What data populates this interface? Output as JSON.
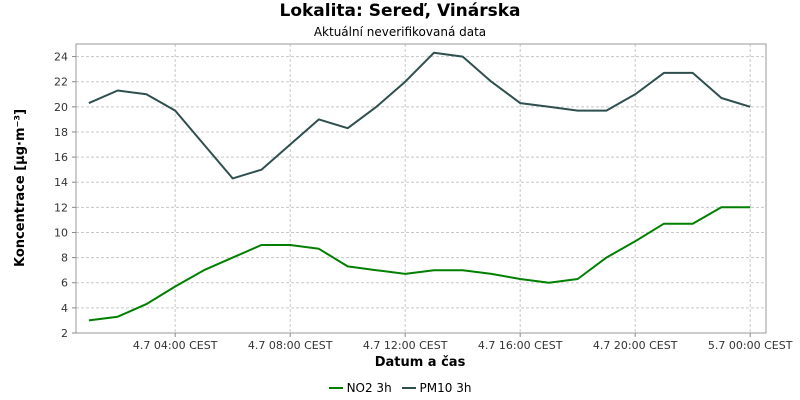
{
  "chart_data": {
    "type": "line",
    "title": "Lokalita: Sereď, Vinárska",
    "subtitle": "Aktuální neverifikovaná data",
    "xlabel": "Datum a čas",
    "ylabel": "Koncentrace [µg·m⁻³]",
    "ylim": [
      2,
      25
    ],
    "y_ticks": [
      2,
      4,
      6,
      8,
      10,
      12,
      14,
      16,
      18,
      20,
      22,
      24
    ],
    "xlim": [
      "4.7 01:00 CEST",
      "5.7 01:00 CEST"
    ],
    "x_ticks": [
      "4.7 04:00 CEST",
      "4.7 08:00 CEST",
      "4.7 12:00 CEST",
      "4.7 16:00 CEST",
      "4.7 20:00 CEST",
      "5.7 00:00 CEST"
    ],
    "x": [
      "4.7 01:00",
      "4.7 02:00",
      "4.7 03:00",
      "4.7 04:00",
      "4.7 05:00",
      "4.7 06:00",
      "4.7 07:00",
      "4.7 08:00",
      "4.7 09:00",
      "4.7 10:00",
      "4.7 11:00",
      "4.7 12:00",
      "4.7 13:00",
      "4.7 14:00",
      "4.7 15:00",
      "4.7 16:00",
      "4.7 17:00",
      "4.7 18:00",
      "4.7 19:00",
      "4.7 20:00",
      "4.7 21:00",
      "4.7 22:00",
      "4.7 23:00",
      "5.7 00:00"
    ],
    "grid": true,
    "legend_position": "bottom",
    "series": [
      {
        "name": "NO2 3h",
        "color": "#008000",
        "values": [
          3.0,
          3.3,
          4.3,
          5.7,
          7.0,
          8.0,
          9.0,
          9.0,
          8.7,
          7.3,
          7.0,
          6.7,
          7.0,
          7.0,
          6.7,
          6.3,
          6.0,
          6.3,
          8.0,
          9.3,
          10.7,
          10.7,
          12.0,
          12.0
        ]
      },
      {
        "name": "PM10 3h",
        "color": "#2f4f4f",
        "values": [
          20.3,
          21.3,
          21.0,
          19.7,
          17.0,
          14.3,
          15.0,
          17.0,
          19.0,
          18.3,
          20.0,
          22.0,
          24.3,
          24.0,
          22.0,
          20.3,
          20.0,
          19.7,
          19.7,
          21.0,
          22.7,
          22.7,
          20.7,
          20.0
        ]
      }
    ]
  }
}
